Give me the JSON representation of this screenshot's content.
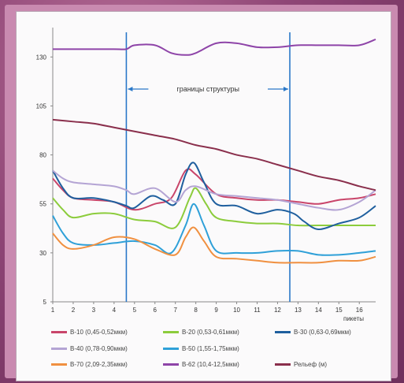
{
  "chart_data": {
    "type": "line",
    "title": "",
    "xlabel": "пикеты",
    "ylabel": "",
    "xlim": [
      1,
      16.8
    ],
    "ylim": [
      5,
      145
    ],
    "x_ticks": [
      "1",
      "2",
      "3",
      "4",
      "5",
      "6",
      "7",
      "8",
      "9",
      "10",
      "11",
      "12",
      "13",
      "14",
      "15",
      "16"
    ],
    "y_ticks": [
      "5",
      "30",
      "55",
      "80",
      "105",
      "130"
    ],
    "annotation": "границы структуры",
    "boundaries": [
      4.6,
      12.6
    ],
    "series": [
      {
        "name": "B-10 (0,45-0,52мкм)",
        "color": "#c9456a",
        "points": [
          [
            1,
            68
          ],
          [
            1.5,
            62
          ],
          [
            2,
            58
          ],
          [
            3,
            57
          ],
          [
            4,
            56
          ],
          [
            5,
            52
          ],
          [
            6,
            55
          ],
          [
            6.8,
            58
          ],
          [
            7.5,
            72
          ],
          [
            8,
            70
          ],
          [
            9,
            60
          ],
          [
            10,
            58
          ],
          [
            11,
            57
          ],
          [
            12,
            57
          ],
          [
            13,
            56
          ],
          [
            14,
            55
          ],
          [
            15,
            57
          ],
          [
            16,
            58
          ],
          [
            16.8,
            60
          ]
        ]
      },
      {
        "name": "B-20 (0,53-0,61мкм)",
        "color": "#8ccc3c",
        "points": [
          [
            1,
            58
          ],
          [
            1.5,
            52
          ],
          [
            2,
            48
          ],
          [
            3,
            50
          ],
          [
            4,
            50
          ],
          [
            5,
            47
          ],
          [
            6,
            46
          ],
          [
            7,
            43
          ],
          [
            7.7,
            58
          ],
          [
            8,
            63
          ],
          [
            8.5,
            55
          ],
          [
            9,
            48
          ],
          [
            10,
            46
          ],
          [
            11,
            45
          ],
          [
            12,
            45
          ],
          [
            13,
            44
          ],
          [
            14,
            44
          ],
          [
            15,
            44
          ],
          [
            16,
            44
          ],
          [
            16.8,
            44
          ]
        ]
      },
      {
        "name": "B-30 (0,63-0,69мкм)",
        "color": "#1f5f9e",
        "points": [
          [
            1,
            72
          ],
          [
            1.5,
            63
          ],
          [
            2,
            58
          ],
          [
            3,
            58
          ],
          [
            4,
            56
          ],
          [
            4.6,
            54
          ],
          [
            5,
            53
          ],
          [
            5.8,
            59
          ],
          [
            6.4,
            57
          ],
          [
            7,
            55
          ],
          [
            7.5,
            70
          ],
          [
            7.9,
            76
          ],
          [
            8.4,
            66
          ],
          [
            9,
            55
          ],
          [
            10,
            54
          ],
          [
            11,
            50
          ],
          [
            12,
            52
          ],
          [
            12.8,
            50
          ],
          [
            13.3,
            46
          ],
          [
            14,
            42
          ],
          [
            15,
            45
          ],
          [
            16,
            48
          ],
          [
            16.8,
            54
          ]
        ]
      },
      {
        "name": "B-40 (0,78-0,90мкм)",
        "color": "#b4a4d4",
        "points": [
          [
            1,
            72
          ],
          [
            1.5,
            68
          ],
          [
            2,
            66
          ],
          [
            3,
            65
          ],
          [
            4,
            64
          ],
          [
            4.6,
            62
          ],
          [
            5,
            60
          ],
          [
            6,
            63
          ],
          [
            7,
            56
          ],
          [
            7.5,
            62
          ],
          [
            8,
            64
          ],
          [
            9,
            60
          ],
          [
            10,
            59
          ],
          [
            11,
            58
          ],
          [
            12,
            57
          ],
          [
            13,
            55
          ],
          [
            14,
            53
          ],
          [
            15,
            52
          ],
          [
            16,
            56
          ],
          [
            16.8,
            62
          ]
        ]
      },
      {
        "name": "B-50 (1,55-1,75мкм)",
        "color": "#2fa0d8",
        "points": [
          [
            1,
            49
          ],
          [
            1.5,
            40
          ],
          [
            2,
            35
          ],
          [
            3,
            34
          ],
          [
            4,
            35
          ],
          [
            5,
            36
          ],
          [
            6,
            34
          ],
          [
            6.8,
            30
          ],
          [
            7.5,
            44
          ],
          [
            7.9,
            55
          ],
          [
            8.4,
            44
          ],
          [
            9,
            31
          ],
          [
            10,
            30
          ],
          [
            11,
            30
          ],
          [
            12,
            31
          ],
          [
            13,
            31
          ],
          [
            14,
            29
          ],
          [
            15,
            29
          ],
          [
            16,
            30
          ],
          [
            16.8,
            31
          ]
        ]
      },
      {
        "name": "B-70 (2,09-2,35мкм)",
        "color": "#f09040",
        "points": [
          [
            1,
            40
          ],
          [
            1.5,
            34
          ],
          [
            2,
            32
          ],
          [
            3,
            34
          ],
          [
            4,
            38
          ],
          [
            5,
            37
          ],
          [
            6,
            32
          ],
          [
            7,
            29
          ],
          [
            7.5,
            38
          ],
          [
            7.9,
            43
          ],
          [
            8.4,
            36
          ],
          [
            9,
            28
          ],
          [
            10,
            27
          ],
          [
            11,
            26
          ],
          [
            12,
            25
          ],
          [
            13,
            25
          ],
          [
            14,
            25
          ],
          [
            15,
            26
          ],
          [
            16,
            26
          ],
          [
            16.8,
            28
          ]
        ]
      },
      {
        "name": "B-62 (10,4-12,5мкм)",
        "color": "#8e44a8",
        "points": [
          [
            1,
            134
          ],
          [
            2,
            134
          ],
          [
            3,
            134
          ],
          [
            4,
            134
          ],
          [
            4.6,
            134
          ],
          [
            5,
            136
          ],
          [
            6,
            136
          ],
          [
            6.8,
            132
          ],
          [
            7.5,
            131
          ],
          [
            8,
            132
          ],
          [
            9,
            137
          ],
          [
            10,
            137
          ],
          [
            11,
            135
          ],
          [
            12,
            135
          ],
          [
            13,
            136
          ],
          [
            14,
            136
          ],
          [
            15,
            136
          ],
          [
            16,
            136
          ],
          [
            16.8,
            139
          ]
        ]
      },
      {
        "name": "Рельеф (м)",
        "color": "#8a2f4c",
        "points": [
          [
            1,
            98
          ],
          [
            2,
            97
          ],
          [
            3,
            96
          ],
          [
            4,
            94
          ],
          [
            5,
            92
          ],
          [
            6,
            90
          ],
          [
            7,
            88
          ],
          [
            8,
            85
          ],
          [
            9,
            83
          ],
          [
            10,
            80
          ],
          [
            11,
            78
          ],
          [
            12,
            75
          ],
          [
            13,
            72
          ],
          [
            14,
            69
          ],
          [
            15,
            67
          ],
          [
            16,
            64
          ],
          [
            16.8,
            62
          ]
        ]
      }
    ]
  }
}
